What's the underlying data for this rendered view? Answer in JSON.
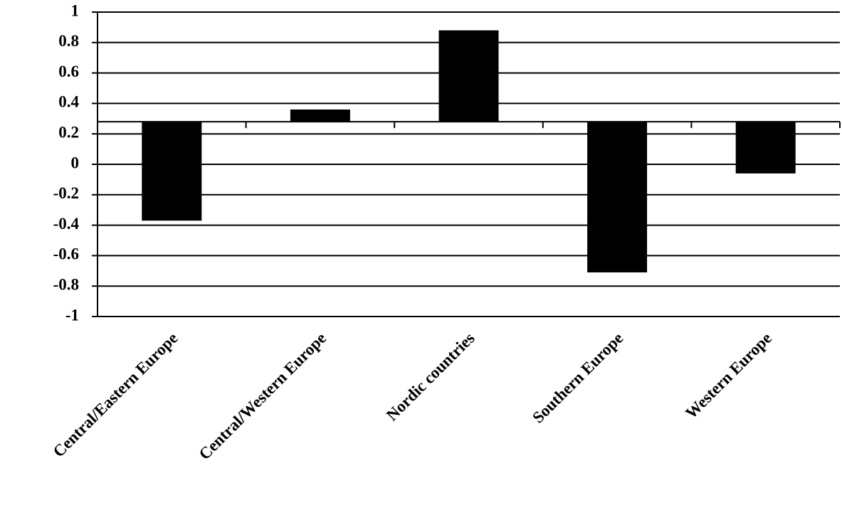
{
  "chart_data": {
    "type": "bar",
    "categories": [
      "Central/Eastern Europe",
      "Central/Western Europe",
      "Nordic countries",
      "Southern Europe",
      "Western Europe"
    ],
    "values": [
      -0.37,
      0.36,
      0.88,
      -0.71,
      -0.06
    ],
    "color": "#000000",
    "ylim": [
      -1,
      1
    ],
    "yticks": [
      -1,
      -0.8,
      -0.6,
      -0.4,
      -0.2,
      0,
      0.2,
      0.4,
      0.6,
      0.8,
      1
    ],
    "x_axis_crosses": 0.28,
    "grid": true
  }
}
